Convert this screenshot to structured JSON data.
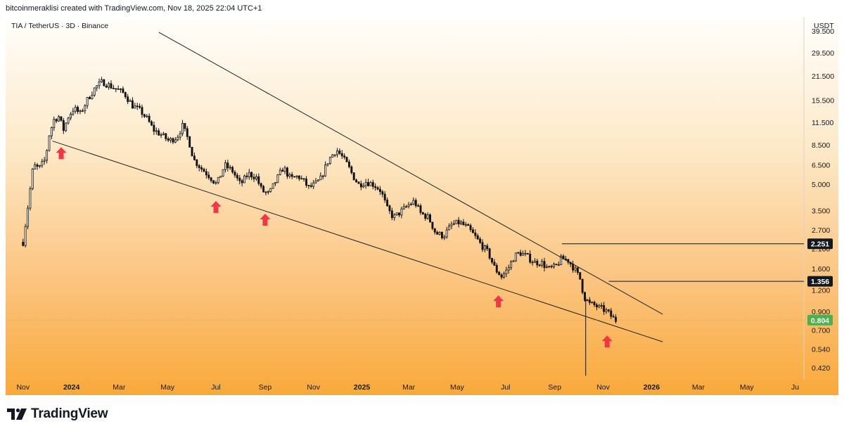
{
  "header": {
    "caption": "bitcoinmeraklisi created with TradingView.com, Nov 18, 2025 22:04 UTC+1"
  },
  "footer": {
    "brand": "TradingView",
    "logo_icon": "tradingview-logo-icon"
  },
  "colors": {
    "up": "#111111",
    "down": "#111111",
    "trendline": "#222222",
    "arrow": "#f23645",
    "last_price_badge": "#4caf50",
    "level_badge": "#131722"
  },
  "chart_data": {
    "type": "candlestick",
    "title": "TIA / TetherUS · 3D · Binance",
    "currency": "USDT",
    "y_scale": "log",
    "ylim": [
      0.36,
      48
    ],
    "xlim": [
      "2023-10-10",
      "2026-07-12"
    ],
    "x_ticks": [
      {
        "date": "2023-11-01",
        "label": "Nov",
        "bold": false
      },
      {
        "date": "2024-01-01",
        "label": "2024",
        "bold": true
      },
      {
        "date": "2024-03-01",
        "label": "Mar",
        "bold": false
      },
      {
        "date": "2024-05-01",
        "label": "May",
        "bold": false
      },
      {
        "date": "2024-07-01",
        "label": "Jul",
        "bold": false
      },
      {
        "date": "2024-09-01",
        "label": "Sep",
        "bold": false
      },
      {
        "date": "2024-11-01",
        "label": "Nov",
        "bold": false
      },
      {
        "date": "2025-01-01",
        "label": "2025",
        "bold": true
      },
      {
        "date": "2025-03-01",
        "label": "Mar",
        "bold": false
      },
      {
        "date": "2025-05-01",
        "label": "May",
        "bold": false
      },
      {
        "date": "2025-07-01",
        "label": "Jul",
        "bold": false
      },
      {
        "date": "2025-09-01",
        "label": "Sep",
        "bold": false
      },
      {
        "date": "2025-11-01",
        "label": "Nov",
        "bold": false
      },
      {
        "date": "2026-01-01",
        "label": "2026",
        "bold": true
      },
      {
        "date": "2026-03-01",
        "label": "Mar",
        "bold": false
      },
      {
        "date": "2026-05-01",
        "label": "May",
        "bold": false
      },
      {
        "date": "2026-07-01",
        "label": "Ju",
        "bold": false
      }
    ],
    "y_ticks": [
      {
        "value": 39.5,
        "label": "39.500"
      },
      {
        "value": 29.5,
        "label": "29.500"
      },
      {
        "value": 21.5,
        "label": "21.500"
      },
      {
        "value": 15.5,
        "label": "15.500"
      },
      {
        "value": 11.5,
        "label": "11.500"
      },
      {
        "value": 8.5,
        "label": "8.500"
      },
      {
        "value": 6.5,
        "label": "6.500"
      },
      {
        "value": 5.0,
        "label": "5.000"
      },
      {
        "value": 3.5,
        "label": "3.500"
      },
      {
        "value": 2.7,
        "label": "2.700"
      },
      {
        "value": 2.1,
        "label": "2.100"
      },
      {
        "value": 1.6,
        "label": "1.600"
      },
      {
        "value": 1.2,
        "label": "1.200"
      },
      {
        "value": 0.9,
        "label": "0.900"
      },
      {
        "value": 0.7,
        "label": "0.700"
      },
      {
        "value": 0.54,
        "label": "0.540"
      },
      {
        "value": 0.42,
        "label": "0.420"
      }
    ],
    "price_path": [
      [
        "2023-10-31",
        2.3
      ],
      [
        "2023-11-03",
        2.3
      ],
      [
        "2023-11-10",
        4.0
      ],
      [
        "2023-11-16",
        6.5
      ],
      [
        "2023-11-23",
        6.2
      ],
      [
        "2023-12-01",
        7.0
      ],
      [
        "2023-12-06",
        9.8
      ],
      [
        "2023-12-12",
        12.0
      ],
      [
        "2023-12-18",
        12.5
      ],
      [
        "2023-12-24",
        10.5
      ],
      [
        "2023-12-30",
        12.5
      ],
      [
        "2024-01-06",
        14.0
      ],
      [
        "2024-01-14",
        13.0
      ],
      [
        "2024-01-24",
        16.0
      ],
      [
        "2024-02-02",
        18.5
      ],
      [
        "2024-02-11",
        20.0
      ],
      [
        "2024-02-20",
        19.0
      ],
      [
        "2024-03-01",
        18.0
      ],
      [
        "2024-03-10",
        17.0
      ],
      [
        "2024-03-20",
        14.5
      ],
      [
        "2024-03-30",
        13.5
      ],
      [
        "2024-04-08",
        12.0
      ],
      [
        "2024-04-15",
        10.5
      ],
      [
        "2024-04-25",
        9.8
      ],
      [
        "2024-05-05",
        9.0
      ],
      [
        "2024-05-15",
        9.5
      ],
      [
        "2024-05-22",
        11.0
      ],
      [
        "2024-05-30",
        9.0
      ],
      [
        "2024-06-05",
        7.0
      ],
      [
        "2024-06-15",
        6.2
      ],
      [
        "2024-06-25",
        5.6
      ],
      [
        "2024-07-04",
        5.0
      ],
      [
        "2024-07-14",
        6.5
      ],
      [
        "2024-07-24",
        6.0
      ],
      [
        "2024-08-03",
        5.0
      ],
      [
        "2024-08-13",
        5.8
      ],
      [
        "2024-08-23",
        5.5
      ],
      [
        "2024-08-30",
        4.6
      ],
      [
        "2024-09-08",
        4.4
      ],
      [
        "2024-09-16",
        5.2
      ],
      [
        "2024-09-26",
        6.3
      ],
      [
        "2024-10-05",
        5.4
      ],
      [
        "2024-10-15",
        5.6
      ],
      [
        "2024-10-22",
        5.2
      ],
      [
        "2024-10-28",
        4.8
      ],
      [
        "2024-11-05",
        5.0
      ],
      [
        "2024-11-12",
        5.4
      ],
      [
        "2024-11-22",
        7.0
      ],
      [
        "2024-12-02",
        8.0
      ],
      [
        "2024-12-08",
        7.4
      ],
      [
        "2024-12-16",
        6.5
      ],
      [
        "2024-12-23",
        5.6
      ],
      [
        "2024-12-30",
        5.0
      ],
      [
        "2025-01-08",
        5.2
      ],
      [
        "2025-01-18",
        5.0
      ],
      [
        "2025-01-27",
        4.6
      ],
      [
        "2025-02-04",
        3.6
      ],
      [
        "2025-02-12",
        3.2
      ],
      [
        "2025-02-22",
        3.5
      ],
      [
        "2025-03-03",
        3.8
      ],
      [
        "2025-03-10",
        4.0
      ],
      [
        "2025-03-18",
        3.4
      ],
      [
        "2025-03-28",
        3.2
      ],
      [
        "2025-04-06",
        2.6
      ],
      [
        "2025-04-16",
        2.5
      ],
      [
        "2025-04-26",
        2.9
      ],
      [
        "2025-05-06",
        3.0
      ],
      [
        "2025-05-16",
        2.8
      ],
      [
        "2025-05-25",
        2.5
      ],
      [
        "2025-06-03",
        2.2
      ],
      [
        "2025-06-11",
        2.0
      ],
      [
        "2025-06-20",
        1.6
      ],
      [
        "2025-06-28",
        1.45
      ],
      [
        "2025-07-06",
        1.6
      ],
      [
        "2025-07-14",
        1.9
      ],
      [
        "2025-07-21",
        2.0
      ],
      [
        "2025-07-30",
        1.9
      ],
      [
        "2025-08-08",
        1.75
      ],
      [
        "2025-08-17",
        1.75
      ],
      [
        "2025-08-26",
        1.6
      ],
      [
        "2025-09-04",
        1.65
      ],
      [
        "2025-09-12",
        1.85
      ],
      [
        "2025-09-20",
        1.8
      ],
      [
        "2025-09-28",
        1.6
      ],
      [
        "2025-10-05",
        1.4
      ],
      [
        "2025-10-10",
        1.1
      ],
      [
        "2025-10-17",
        1.0
      ],
      [
        "2025-10-24",
        0.98
      ],
      [
        "2025-10-29",
        0.95
      ],
      [
        "2025-11-03",
        0.93
      ],
      [
        "2025-11-08",
        0.9
      ],
      [
        "2025-11-13",
        0.85
      ],
      [
        "2025-11-18",
        0.804
      ]
    ],
    "wick_events": [
      {
        "date": "2025-10-10",
        "low": 0.38
      }
    ],
    "trendlines": [
      {
        "name": "upper",
        "start": [
          "2024-04-20",
          39.0
        ],
        "end": [
          "2026-01-15",
          0.87
        ]
      },
      {
        "name": "lower",
        "start": [
          "2023-12-08",
          9.0
        ],
        "end": [
          "2026-01-15",
          0.6
        ]
      }
    ],
    "horizontal_levels": [
      {
        "value": 2.251,
        "label": "2.251",
        "from": "2025-09-10"
      },
      {
        "value": 1.356,
        "label": "1.356",
        "from": "2025-11-08"
      }
    ],
    "last_price": {
      "value": 0.804,
      "label": "0.804"
    },
    "annotations": [
      {
        "type": "arrow-up",
        "date": "2023-12-19",
        "value": 7.6
      },
      {
        "type": "arrow-up",
        "date": "2024-07-01",
        "value": 3.68
      },
      {
        "type": "arrow-up",
        "date": "2024-09-01",
        "value": 3.1
      },
      {
        "type": "arrow-up",
        "date": "2025-06-22",
        "value": 1.03
      },
      {
        "type": "arrow-up",
        "date": "2025-11-06",
        "value": 0.6
      }
    ],
    "grid": false,
    "legend": "none"
  }
}
